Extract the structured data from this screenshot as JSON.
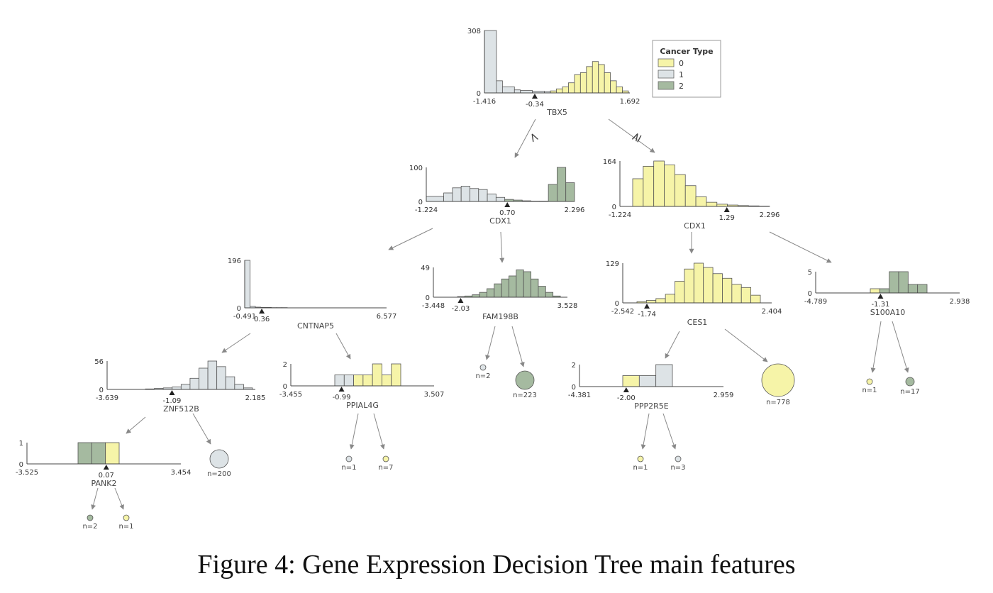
{
  "caption": "Figure 4: Gene Expression Decision Tree main features",
  "colors": {
    "0": "#f6f4a8",
    "1": "#dde3e6",
    "2": "#a5baa0",
    "edge": "#888888",
    "axis": "#444444"
  },
  "legend": {
    "title": "Cancer Type",
    "items": [
      {
        "label": "0",
        "class": "0"
      },
      {
        "label": "1",
        "class": "1"
      },
      {
        "label": "2",
        "class": "2"
      }
    ]
  },
  "chart_data": {
    "type": "decision_tree",
    "nodes": [
      {
        "id": "tbx5",
        "feature": "TBX5",
        "min": "-1.416",
        "max": "1.692",
        "ymax": "308",
        "split": "-0.34",
        "split_value": -0.34,
        "bars": [
          [
            1,
            308,
            2
          ],
          [
            1,
            60,
            1
          ],
          [
            1,
            30,
            2
          ],
          [
            1,
            15,
            1
          ],
          [
            1,
            12,
            2
          ],
          [
            1,
            8,
            2
          ],
          [
            1,
            6,
            1
          ],
          [
            0,
            10,
            1
          ],
          [
            0,
            20,
            1
          ],
          [
            0,
            30,
            1
          ],
          [
            0,
            50,
            1
          ],
          [
            0,
            90,
            1
          ],
          [
            0,
            100,
            1
          ],
          [
            0,
            130,
            1
          ],
          [
            0,
            155,
            1
          ],
          [
            0,
            140,
            1
          ],
          [
            0,
            100,
            1
          ],
          [
            0,
            60,
            1
          ],
          [
            0,
            30,
            1
          ],
          [
            0,
            10,
            1
          ]
        ]
      },
      {
        "id": "cdx1a",
        "feature": "CDX1",
        "min": "-1.224",
        "max": "2.296",
        "ymax": "100",
        "split": "0.70",
        "split_value": 0.7,
        "bars": [
          [
            1,
            15,
            2
          ],
          [
            1,
            25,
            1
          ],
          [
            1,
            40,
            1
          ],
          [
            1,
            45,
            1
          ],
          [
            1,
            38,
            1
          ],
          [
            1,
            35,
            1
          ],
          [
            1,
            22,
            1
          ],
          [
            1,
            12,
            1
          ],
          [
            2,
            6,
            1
          ],
          [
            2,
            4,
            1
          ],
          [
            2,
            2,
            1
          ],
          [
            2,
            1,
            1
          ],
          [
            2,
            1,
            1
          ],
          [
            2,
            50,
            1
          ],
          [
            2,
            100,
            1
          ],
          [
            2,
            55,
            1
          ]
        ]
      },
      {
        "id": "cdx1b",
        "feature": "CDX1",
        "min": "-1.224",
        "max": "2.296",
        "ymax": "164",
        "split": "1.29",
        "split_value": 1.29,
        "bars": [
          [
            0,
            100,
            1
          ],
          [
            0,
            145,
            1
          ],
          [
            0,
            164,
            1
          ],
          [
            0,
            150,
            1
          ],
          [
            0,
            115,
            1
          ],
          [
            0,
            75,
            1
          ],
          [
            0,
            35,
            1
          ],
          [
            0,
            15,
            1
          ],
          [
            0,
            8,
            1
          ],
          [
            0,
            5,
            1
          ],
          [
            0,
            3,
            1
          ],
          [
            0,
            2,
            1
          ],
          [
            0,
            1,
            1
          ]
        ]
      },
      {
        "id": "cntnap5",
        "feature": "CNTNAP5",
        "min": "-0.491",
        "max": "6.577",
        "ymax": "196",
        "split": "0.36",
        "split_value": 0.36,
        "bars": [
          [
            1,
            196,
            1
          ],
          [
            1,
            6,
            1
          ],
          [
            1,
            3,
            1
          ],
          [
            1,
            2,
            1
          ],
          [
            1,
            2,
            1
          ],
          [
            1,
            1,
            1
          ],
          [
            1,
            1,
            1
          ],
          [
            1,
            1,
            1
          ]
        ]
      },
      {
        "id": "fam198b",
        "feature": "FAM198B",
        "min": "-3.448",
        "max": "3.528",
        "ymax": "49",
        "split": "-2.03",
        "split_value": -2.03,
        "bars": [
          [
            2,
            1,
            1
          ],
          [
            2,
            2,
            1
          ],
          [
            2,
            4,
            1
          ],
          [
            2,
            8,
            1
          ],
          [
            2,
            14,
            1
          ],
          [
            2,
            22,
            1
          ],
          [
            2,
            30,
            1
          ],
          [
            2,
            35,
            1
          ],
          [
            2,
            45,
            1
          ],
          [
            2,
            42,
            1
          ],
          [
            2,
            30,
            1
          ],
          [
            2,
            18,
            1
          ],
          [
            2,
            8,
            1
          ],
          [
            2,
            2,
            1
          ]
        ]
      },
      {
        "id": "ces1",
        "feature": "CES1",
        "min": "-2.542",
        "max": "2.404",
        "ymax": "129",
        "split": "-1.74",
        "split_value": -1.74,
        "bars": [
          [
            0,
            4,
            1
          ],
          [
            0,
            8,
            1
          ],
          [
            0,
            14,
            1
          ],
          [
            0,
            28,
            1
          ],
          [
            0,
            70,
            1
          ],
          [
            0,
            110,
            1
          ],
          [
            0,
            129,
            1
          ],
          [
            0,
            115,
            1
          ],
          [
            0,
            95,
            1
          ],
          [
            0,
            80,
            1
          ],
          [
            0,
            60,
            1
          ],
          [
            0,
            50,
            1
          ],
          [
            0,
            25,
            1
          ]
        ]
      },
      {
        "id": "s100a10",
        "feature": "S100A10",
        "min": "-4.789",
        "max": "2.938",
        "ymax": "5",
        "split": "-1.31",
        "split_value": -1.31,
        "bars": [
          [
            0,
            1,
            1
          ],
          [
            2,
            1,
            1
          ],
          [
            2,
            5,
            1
          ],
          [
            2,
            5,
            1
          ],
          [
            2,
            2,
            1
          ],
          [
            2,
            2,
            1
          ]
        ]
      },
      {
        "id": "znf512b",
        "feature": "ZNF512B",
        "min": "-3.639",
        "max": "2.185",
        "ymax": "56",
        "split": "-1.09",
        "split_value": -1.09,
        "bars": [
          [
            1,
            1,
            1
          ],
          [
            1,
            2,
            1
          ],
          [
            1,
            3,
            1
          ],
          [
            1,
            5,
            1
          ],
          [
            1,
            10,
            1
          ],
          [
            1,
            22,
            1
          ],
          [
            1,
            42,
            1
          ],
          [
            1,
            56,
            1
          ],
          [
            1,
            45,
            1
          ],
          [
            1,
            25,
            1
          ],
          [
            1,
            10,
            1
          ],
          [
            1,
            3,
            1
          ]
        ]
      },
      {
        "id": "ppial4g",
        "feature": "PPIAL4G",
        "min": "-3.455",
        "max": "3.507",
        "ymax": "2",
        "split": "-0.99",
        "split_value": -0.99,
        "bars": [
          [
            1,
            1,
            1
          ],
          [
            1,
            1,
            1
          ],
          [
            0,
            1,
            1
          ],
          [
            0,
            1,
            1
          ],
          [
            0,
            2,
            1
          ],
          [
            0,
            1,
            1
          ],
          [
            0,
            2,
            1
          ]
        ]
      },
      {
        "id": "ppp2r5e",
        "feature": "PPP2R5E",
        "min": "-4.381",
        "max": "2.959",
        "ymax": "2",
        "split": "-2.00",
        "split_value": -2.0,
        "bars": [
          [
            0,
            1,
            1
          ],
          [
            1,
            1,
            1
          ],
          [
            1,
            2,
            1
          ]
        ]
      },
      {
        "id": "pank2",
        "feature": "PANK2",
        "min": "-3.525",
        "max": "3.454",
        "ymax": "1",
        "split": "0.07",
        "split_value": 0.07,
        "bars": [
          [
            2,
            1,
            1
          ],
          [
            2,
            1,
            1
          ],
          [
            0,
            1,
            1
          ]
        ]
      }
    ],
    "leaves": [
      {
        "id": "leaf-n2-fam",
        "label": "n=2",
        "class": "1",
        "n": 2
      },
      {
        "id": "leaf-n223",
        "label": "n=223",
        "class": "2",
        "n": 223
      },
      {
        "id": "leaf-n778",
        "label": "n=778",
        "class": "0",
        "n": 778
      },
      {
        "id": "leaf-n1-s100",
        "label": "n=1",
        "class": "0",
        "n": 1
      },
      {
        "id": "leaf-n17",
        "label": "n=17",
        "class": "2",
        "n": 17
      },
      {
        "id": "leaf-n200",
        "label": "n=200",
        "class": "1",
        "n": 200
      },
      {
        "id": "leaf-n1-ppial",
        "label": "n=1",
        "class": "1",
        "n": 1
      },
      {
        "id": "leaf-n7",
        "label": "n=7",
        "class": "0",
        "n": 7
      },
      {
        "id": "leaf-n1-ppp",
        "label": "n=1",
        "class": "0",
        "n": 1
      },
      {
        "id": "leaf-n3",
        "label": "n=3",
        "class": "1",
        "n": 3
      },
      {
        "id": "leaf-n2-pank",
        "label": "n=2",
        "class": "2",
        "n": 2
      },
      {
        "id": "leaf-n1-pank",
        "label": "n=1",
        "class": "0",
        "n": 1
      }
    ],
    "edges": [
      {
        "from": "tbx5",
        "to": "cdx1a",
        "label": "<"
      },
      {
        "from": "tbx5",
        "to": "cdx1b",
        "label": "≥"
      },
      {
        "from": "cdx1a",
        "to": "cntnap5",
        "label": ""
      },
      {
        "from": "cdx1a",
        "to": "fam198b",
        "label": ""
      },
      {
        "from": "cdx1b",
        "to": "ces1",
        "label": ""
      },
      {
        "from": "cdx1b",
        "to": "s100a10",
        "label": ""
      },
      {
        "from": "cntnap5",
        "to": "znf512b",
        "label": ""
      },
      {
        "from": "cntnap5",
        "to": "ppial4g",
        "label": ""
      },
      {
        "from": "fam198b",
        "to": "leaf-n2-fam",
        "label": ""
      },
      {
        "from": "fam198b",
        "to": "leaf-n223",
        "label": ""
      },
      {
        "from": "ces1",
        "to": "ppp2r5e",
        "label": ""
      },
      {
        "from": "ces1",
        "to": "leaf-n778",
        "label": ""
      },
      {
        "from": "s100a10",
        "to": "leaf-n1-s100",
        "label": ""
      },
      {
        "from": "s100a10",
        "to": "leaf-n17",
        "label": ""
      },
      {
        "from": "znf512b",
        "to": "pank2",
        "label": ""
      },
      {
        "from": "znf512b",
        "to": "leaf-n200",
        "label": ""
      },
      {
        "from": "ppial4g",
        "to": "leaf-n1-ppial",
        "label": ""
      },
      {
        "from": "ppial4g",
        "to": "leaf-n7",
        "label": ""
      },
      {
        "from": "ppp2r5e",
        "to": "leaf-n1-ppp",
        "label": ""
      },
      {
        "from": "ppp2r5e",
        "to": "leaf-n3",
        "label": ""
      },
      {
        "from": "pank2",
        "to": "leaf-n2-pank",
        "label": ""
      },
      {
        "from": "pank2",
        "to": "leaf-n1-pank",
        "label": ""
      }
    ]
  }
}
